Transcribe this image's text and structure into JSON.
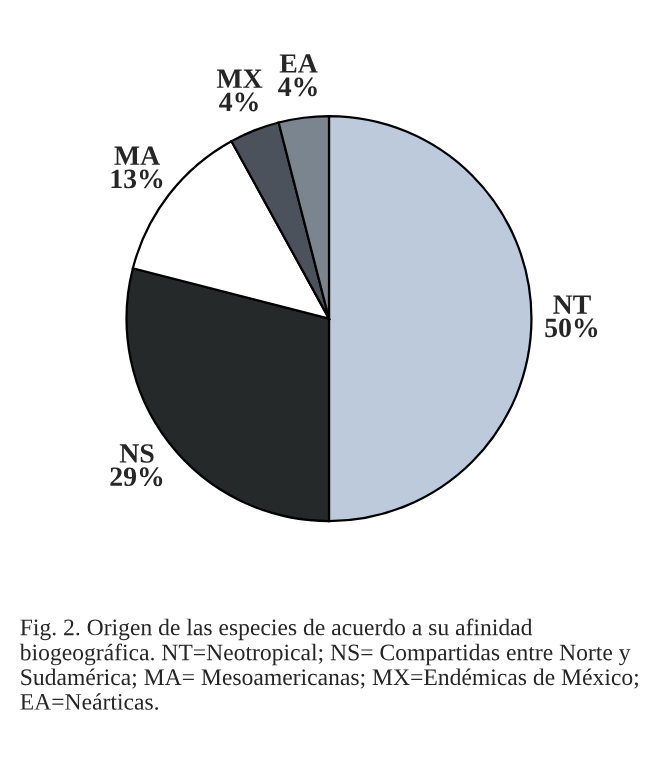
{
  "chart_data": {
    "type": "pie",
    "categories": [
      "NT",
      "NS",
      "MA",
      "MX",
      "EA"
    ],
    "values": [
      50,
      29,
      13,
      4,
      4
    ],
    "value_labels": [
      "50%",
      "29%",
      "13%",
      "4%",
      "4%"
    ],
    "colors": [
      "#bccadb",
      "#25292a",
      "#ffffff",
      "#4b525b",
      "#7b8590"
    ],
    "annotations": [
      "Fig. 2. Origen de las especies de acuerdo a su afinidad biogeográfica. NT=Neotropical; NS= Compartidas entre Norte y Sudamérica; MA= Mesoamericanas; MX=Endémicas de México; EA=Neárticas."
    ]
  }
}
